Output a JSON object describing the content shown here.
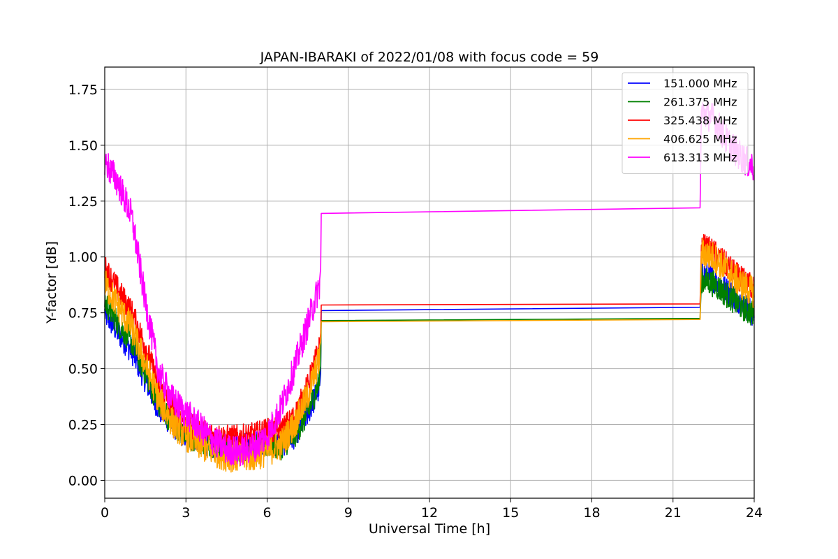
{
  "chart_data": {
    "type": "line",
    "title": "JAPAN-IBARAKI of 2022/01/08 with focus code = 59",
    "xlabel": "Universal Time [h]",
    "ylabel": "Y-factor [dB]",
    "xlim": [
      0,
      24
    ],
    "ylim": [
      -0.08,
      1.85
    ],
    "xticks": [
      0,
      3,
      6,
      9,
      12,
      15,
      18,
      21,
      24
    ],
    "xtick_labels": [
      "0",
      "3",
      "6",
      "9",
      "12",
      "15",
      "18",
      "21",
      "24"
    ],
    "yticks": [
      0.0,
      0.25,
      0.5,
      0.75,
      1.0,
      1.25,
      1.5,
      1.75
    ],
    "ytick_labels": [
      "0.00",
      "0.25",
      "0.50",
      "0.75",
      "1.00",
      "1.25",
      "1.50",
      "1.75"
    ],
    "grid": true,
    "legend_position": "top-right",
    "series": [
      {
        "name": "151.000 MHz",
        "color": "#0000ff",
        "noise": 0.06,
        "x": [
          0,
          0.5,
          1.0,
          1.5,
          2.0,
          2.5,
          3.0,
          3.5,
          4.0,
          4.5,
          5.0,
          5.5,
          6.0,
          6.5,
          7.0,
          7.5,
          7.95,
          8.0,
          22.0,
          22.05,
          22.5,
          23.0,
          23.5,
          24.0
        ],
        "y": [
          0.75,
          0.66,
          0.58,
          0.45,
          0.32,
          0.25,
          0.2,
          0.18,
          0.16,
          0.15,
          0.15,
          0.16,
          0.18,
          0.16,
          0.2,
          0.3,
          0.42,
          0.76,
          0.775,
          0.93,
          0.9,
          0.85,
          0.8,
          0.74
        ]
      },
      {
        "name": "261.375 MHz",
        "color": "#008000",
        "noise": 0.06,
        "x": [
          0,
          0.5,
          1.0,
          1.5,
          2.0,
          2.5,
          3.0,
          3.5,
          4.0,
          4.5,
          5.0,
          5.5,
          6.0,
          6.5,
          7.0,
          7.5,
          7.95,
          8.0,
          22.0,
          22.05,
          22.5,
          23.0,
          23.5,
          24.0
        ],
        "y": [
          0.8,
          0.7,
          0.62,
          0.48,
          0.34,
          0.26,
          0.2,
          0.17,
          0.16,
          0.15,
          0.14,
          0.15,
          0.16,
          0.15,
          0.2,
          0.3,
          0.45,
          0.715,
          0.725,
          0.9,
          0.88,
          0.83,
          0.78,
          0.74
        ]
      },
      {
        "name": "325.438 MHz",
        "color": "#ff0000",
        "noise": 0.06,
        "x": [
          0,
          0.5,
          1.0,
          1.5,
          2.0,
          2.5,
          3.0,
          3.5,
          4.0,
          4.5,
          5.0,
          5.5,
          6.0,
          6.5,
          7.0,
          7.5,
          7.95,
          8.0,
          22.0,
          22.05,
          22.5,
          23.0,
          23.5,
          24.0
        ],
        "y": [
          0.95,
          0.85,
          0.75,
          0.6,
          0.42,
          0.32,
          0.26,
          0.22,
          0.2,
          0.19,
          0.19,
          0.2,
          0.22,
          0.22,
          0.28,
          0.42,
          0.6,
          0.785,
          0.79,
          1.05,
          1.02,
          0.96,
          0.9,
          0.86
        ]
      },
      {
        "name": "406.625 MHz",
        "color": "#ffa500",
        "noise": 0.07,
        "x": [
          0,
          0.5,
          1.0,
          1.5,
          2.0,
          2.5,
          3.0,
          3.5,
          4.0,
          4.5,
          5.0,
          5.5,
          6.0,
          6.5,
          7.0,
          7.5,
          7.95,
          8.0,
          22.0,
          22.05,
          22.5,
          23.0,
          23.5,
          24.0
        ],
        "y": [
          0.88,
          0.78,
          0.68,
          0.52,
          0.36,
          0.26,
          0.2,
          0.16,
          0.13,
          0.11,
          0.1,
          0.11,
          0.13,
          0.16,
          0.25,
          0.38,
          0.55,
          0.71,
          0.72,
          1.02,
          1.0,
          0.94,
          0.88,
          0.84
        ]
      },
      {
        "name": "613.313 MHz",
        "color": "#ff00ff",
        "noise": 0.07,
        "x": [
          0,
          0.5,
          1.0,
          1.5,
          2.0,
          2.5,
          3.0,
          3.5,
          4.0,
          4.5,
          5.0,
          5.5,
          6.0,
          6.5,
          7.0,
          7.5,
          7.95,
          8.0,
          22.0,
          22.05,
          22.5,
          23.0,
          23.5,
          24.0
        ],
        "y": [
          1.43,
          1.33,
          1.18,
          0.8,
          0.48,
          0.36,
          0.3,
          0.24,
          0.18,
          0.14,
          0.13,
          0.15,
          0.2,
          0.32,
          0.5,
          0.7,
          0.88,
          1.195,
          1.22,
          1.65,
          1.62,
          1.52,
          1.45,
          1.4
        ]
      }
    ]
  }
}
